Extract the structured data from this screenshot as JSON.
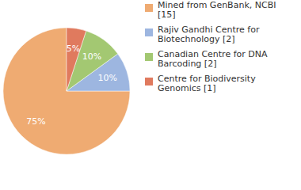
{
  "chart_data": {
    "type": "pie",
    "categories": [
      "Mined from GenBank, NCBI [15]",
      "Rajiv Gandhi Centre for Biotechnology [2]",
      "Canadian Centre for DNA Barcoding [2]",
      "Centre for Biodiversity Genomics [1]"
    ],
    "values": [
      75,
      10,
      10,
      5
    ],
    "value_labels": [
      "75%",
      "10%",
      "10%",
      "5%"
    ],
    "colors": [
      "#efab72",
      "#9db6e0",
      "#a3c872",
      "#e07a5e"
    ],
    "data_labels": true,
    "legend": "top-right"
  }
}
